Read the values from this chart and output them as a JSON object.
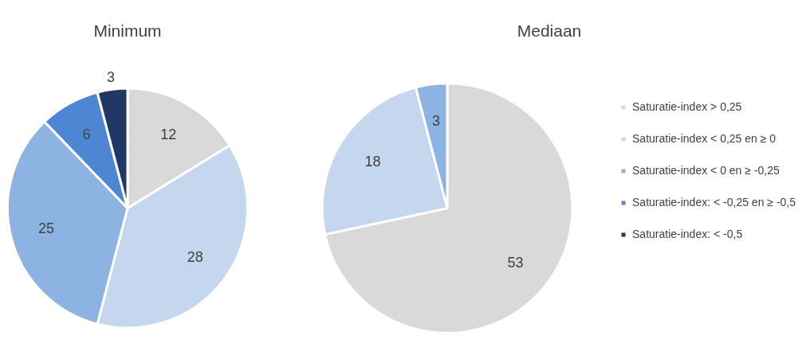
{
  "chart_data": {
    "type": "pie",
    "categories": [
      "Saturatie-index > 0,25",
      "Saturatie-index < 0,25 en ≥ 0",
      "Saturatie-index < 0 en ≥ -0,25",
      "Saturatie-index: < -0,25 en ≥ -0,5",
      "Saturatie-index: < -0,5"
    ],
    "colors": [
      "#d9d9d9",
      "#c5d7ef",
      "#8db3e2",
      "#4f86d4",
      "#1f3864"
    ],
    "data_labels": true,
    "legend": "right",
    "series": [
      {
        "name": "Minimum",
        "values": [
          12,
          28,
          25,
          6,
          3
        ]
      },
      {
        "name": "Mediaan",
        "values": [
          53,
          18,
          3,
          null,
          null
        ]
      }
    ]
  }
}
